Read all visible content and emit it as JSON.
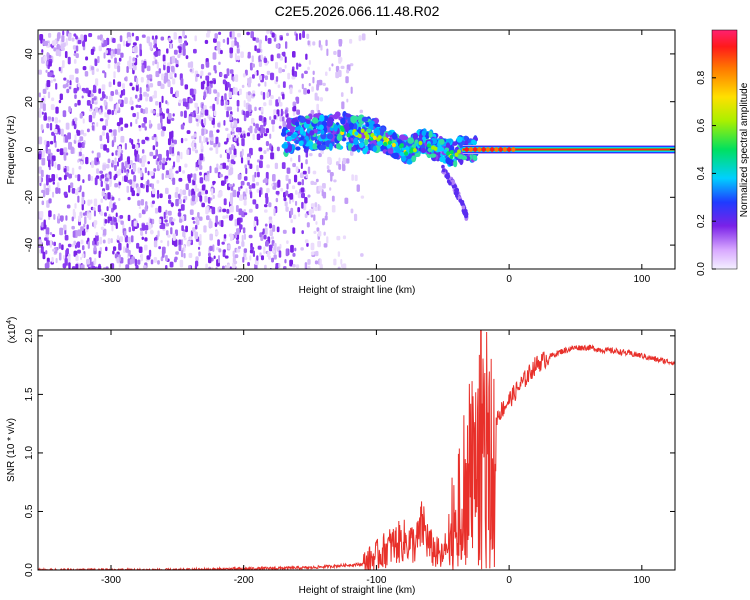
{
  "title": "C2E5.2026.066.11.48.R02",
  "colors": {
    "background": "#ffffff",
    "axes": "#000000",
    "snr_line": "#e8302a",
    "noise_scatter": "#7a22e8"
  },
  "chart_data": [
    {
      "type": "heatmap",
      "title": "",
      "xlabel": "Height of straight line (km)",
      "ylabel": "Frequency (Hz)",
      "xlim": [
        -355,
        125
      ],
      "ylim": [
        -50,
        50
      ],
      "xticks": [
        -300,
        -200,
        -100,
        0,
        100
      ],
      "yticks": [
        -40,
        -20,
        0,
        20,
        40
      ],
      "grid": false,
      "colorbar": {
        "label": "Normalized spectral amplitude",
        "range": [
          0,
          1
        ],
        "ticks": [
          "0.0",
          "0.2",
          "0.4",
          "0.6",
          "0.8"
        ],
        "colormap": "rainbow"
      },
      "features": {
        "noise_region_x": [
          -355,
          -120
        ],
        "noise_fading_x": [
          -180,
          -120
        ],
        "signal_ridge": [
          {
            "x": -170,
            "y": 5
          },
          {
            "x": -150,
            "y": 7
          },
          {
            "x": -130,
            "y": 8
          },
          {
            "x": -115,
            "y": 7
          },
          {
            "x": -100,
            "y": 5
          },
          {
            "x": -85,
            "y": 2
          },
          {
            "x": -75,
            "y": -1
          },
          {
            "x": -65,
            "y": 4
          },
          {
            "x": -55,
            "y": 1
          },
          {
            "x": -45,
            "y": -2
          },
          {
            "x": -35,
            "y": 0
          },
          {
            "x": -20,
            "y": 0
          },
          {
            "x": 0,
            "y": 0
          },
          {
            "x": 125,
            "y": 0
          }
        ],
        "lower_branch": [
          {
            "x": -50,
            "y": -8
          },
          {
            "x": -42,
            "y": -15
          },
          {
            "x": -36,
            "y": -22
          },
          {
            "x": -32,
            "y": -28
          }
        ]
      }
    },
    {
      "type": "line",
      "title": "",
      "xlabel": "Height of straight line (km)",
      "ylabel": "SNR (10 * v/v)",
      "y_multiplier": "(x10",
      "y_multiplier_exponent": "4",
      "y_multiplier_close": ")",
      "xlim": [
        -355,
        125
      ],
      "ylim": [
        0,
        2.05
      ],
      "xticks": [
        -300,
        -200,
        -100,
        0,
        100
      ],
      "yticks": [
        "0.0",
        "0.5",
        "1.0",
        "1.5",
        "2.0"
      ],
      "grid": false,
      "series": [
        {
          "x": [
            -355,
            -300,
            -250,
            -200,
            -150,
            -110,
            -100,
            -90,
            -80,
            -70,
            -65,
            -60,
            -50,
            -45,
            -40,
            -35,
            -30,
            -25,
            -22,
            -20,
            -15,
            -10,
            0,
            10,
            20,
            30,
            40,
            50,
            60,
            70,
            80,
            90,
            100,
            110,
            125
          ],
          "y": [
            0.0,
            0.0,
            0.0,
            0.01,
            0.02,
            0.05,
            0.12,
            0.2,
            0.25,
            0.22,
            0.4,
            0.2,
            0.1,
            0.3,
            0.55,
            0.75,
            1.0,
            1.05,
            1.4,
            1.5,
            1.25,
            1.3,
            1.45,
            1.6,
            1.75,
            1.82,
            1.87,
            1.9,
            1.9,
            1.88,
            1.87,
            1.85,
            1.83,
            1.8,
            1.77
          ]
        }
      ]
    }
  ]
}
